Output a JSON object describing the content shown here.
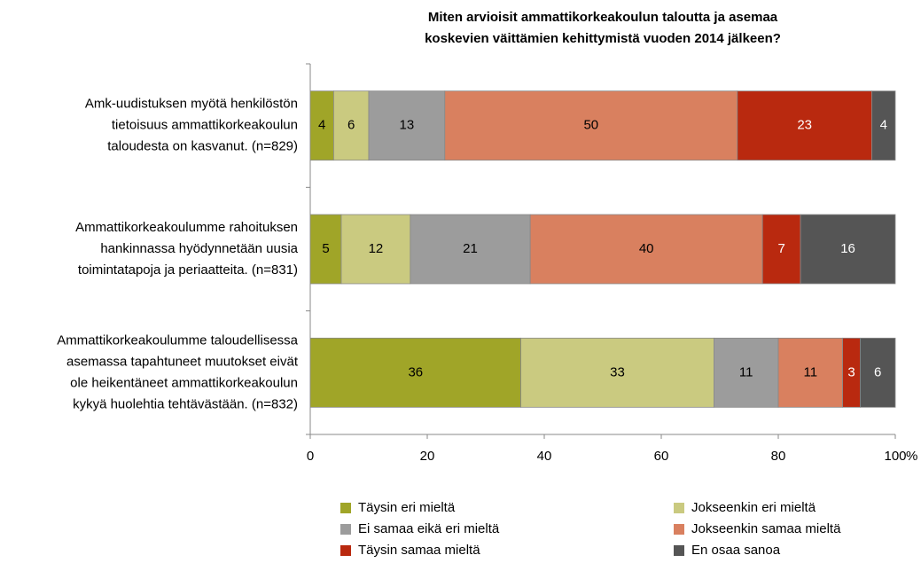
{
  "chart_data": {
    "type": "stacked_barh",
    "title": [
      "Miten arvioisit ammattikorkeakoulun taloutta ja asemaa",
      "koskevien väittämien kehittymistä vuoden 2014 jälkeen?"
    ],
    "categories": [
      [
        "Amk-uudistuksen myötä henkilöstön",
        "tietoisuus ammattikorkeakoulun",
        "taloudesta on kasvanut. (n=829)"
      ],
      [
        "Ammattikorkeakoulumme rahoituksen",
        "hankinnassa hyödynnetään uusia",
        "toimintatapoja ja periaatteita. (n=831)"
      ],
      [
        "Ammattikorkeakoulumme taloudellisessa",
        "asemassa tapahtuneet muutokset eivät",
        "ole heikentäneet ammattikorkeakoulun",
        "kykyä huolehtia tehtävästään. (n=832)"
      ]
    ],
    "series": [
      {
        "name": "Täysin eri mieltä",
        "color": "#a0a528",
        "label_color": "#000000",
        "values": [
          4,
          5.3,
          36
        ],
        "value_labels": [
          "4",
          "5",
          "36"
        ]
      },
      {
        "name": "Jokseenkin eri mieltä",
        "color": "#caca80",
        "label_color": "#000000",
        "values": [
          6,
          11.8,
          33
        ],
        "value_labels": [
          "6",
          "12",
          "33"
        ]
      },
      {
        "name": "Ei samaa eikä eri mieltä",
        "color": "#9c9c9c",
        "label_color": "#000000",
        "values": [
          13,
          20.5,
          11
        ],
        "value_labels": [
          "13",
          "21",
          "11"
        ]
      },
      {
        "name": "Jokseenkin samaa mieltä",
        "color": "#d9805f",
        "label_color": "#000000",
        "values": [
          50,
          39.7,
          11
        ],
        "value_labels": [
          "50",
          "40",
          "11"
        ]
      },
      {
        "name": "Täysin samaa mieltä",
        "color": "#b9290f",
        "label_color": "#ffffff",
        "values": [
          23,
          6.5,
          3
        ],
        "value_labels": [
          "23",
          "7",
          "3"
        ]
      },
      {
        "name": "En osaa sanoa",
        "color": "#555555",
        "label_color": "#ffffff",
        "values": [
          4,
          16.2,
          6
        ],
        "value_labels": [
          "4",
          "16",
          "6"
        ]
      }
    ],
    "xlim": [
      0,
      100
    ],
    "xticks": [
      0,
      20,
      40,
      60,
      80,
      100
    ],
    "xlabel": "%",
    "legend": "bottom"
  }
}
